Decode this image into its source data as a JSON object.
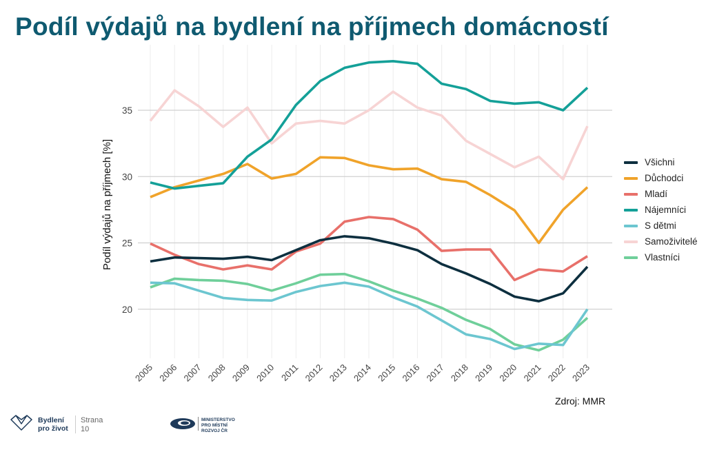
{
  "chart_data": {
    "type": "line",
    "title": "Podíl výdajů na bydlení na příjmech domácností",
    "ylabel": "Podíl výdajů na příjmech [%]",
    "xlabel": "",
    "source": "Zdroj: MMR",
    "ylim": [
      16.3,
      39.9
    ],
    "yticks": [
      20,
      25,
      30,
      35
    ],
    "grid": true,
    "legend_position": "right",
    "x": [
      2005,
      2006,
      2007,
      2008,
      2009,
      2010,
      2011,
      2012,
      2013,
      2014,
      2015,
      2016,
      2017,
      2018,
      2019,
      2020,
      2021,
      2022,
      2023
    ],
    "series": [
      {
        "name": "Všichni",
        "color": "#0d2f3f",
        "values": [
          23.6,
          23.9,
          23.85,
          23.8,
          23.95,
          23.7,
          24.45,
          25.2,
          25.5,
          25.35,
          24.95,
          24.45,
          23.4,
          22.7,
          21.9,
          20.95,
          20.6,
          21.2,
          23.2
        ]
      },
      {
        "name": "Důchodci",
        "color": "#f0a32a",
        "values": [
          28.45,
          29.2,
          29.7,
          30.2,
          30.95,
          29.85,
          30.2,
          31.45,
          31.4,
          30.85,
          30.55,
          30.6,
          29.8,
          29.6,
          28.6,
          27.45,
          25.0,
          27.5,
          29.2
        ]
      },
      {
        "name": "Mladí",
        "color": "#e8706a",
        "values": [
          24.95,
          24.1,
          23.4,
          23.0,
          23.3,
          23.0,
          24.35,
          24.95,
          26.6,
          26.95,
          26.8,
          26.0,
          24.4,
          24.5,
          24.5,
          22.2,
          23.0,
          22.85,
          24.0
        ]
      },
      {
        "name": "Nájemníci",
        "color": "#14a098",
        "values": [
          29.55,
          29.1,
          29.3,
          29.5,
          31.5,
          32.8,
          35.4,
          37.2,
          38.2,
          38.6,
          38.7,
          38.5,
          37.0,
          36.6,
          35.7,
          35.5,
          35.6,
          35.0,
          36.7
        ]
      },
      {
        "name": "S dětmi",
        "color": "#6cc6d0",
        "values": [
          22.0,
          21.95,
          21.4,
          20.85,
          20.7,
          20.65,
          21.3,
          21.75,
          22.0,
          21.7,
          20.9,
          20.2,
          19.15,
          18.1,
          17.75,
          17.0,
          17.4,
          17.3,
          20.0
        ]
      },
      {
        "name": "Samoživitelé",
        "color": "#f7d4d4",
        "values": [
          34.2,
          36.5,
          35.3,
          33.75,
          35.2,
          32.5,
          34.0,
          34.2,
          34.0,
          35.0,
          36.4,
          35.2,
          34.6,
          32.7,
          31.7,
          30.7,
          31.5,
          29.8,
          33.8
        ]
      },
      {
        "name": "Vlastníci",
        "color": "#6fcf9a",
        "values": [
          21.65,
          22.3,
          22.2,
          22.15,
          21.9,
          21.4,
          21.95,
          22.6,
          22.65,
          22.1,
          21.4,
          20.8,
          20.1,
          19.2,
          18.5,
          17.35,
          16.9,
          17.7,
          19.35
        ]
      }
    ]
  },
  "footer": {
    "brand_line1": "Bydlení",
    "brand_line2": "pro život",
    "page_label": "Strana",
    "page_number": "10",
    "ministry_line1": "MINISTERSTVO",
    "ministry_line2": "PRO MÍSTNÍ",
    "ministry_line3": "ROZVOJ ČR"
  }
}
